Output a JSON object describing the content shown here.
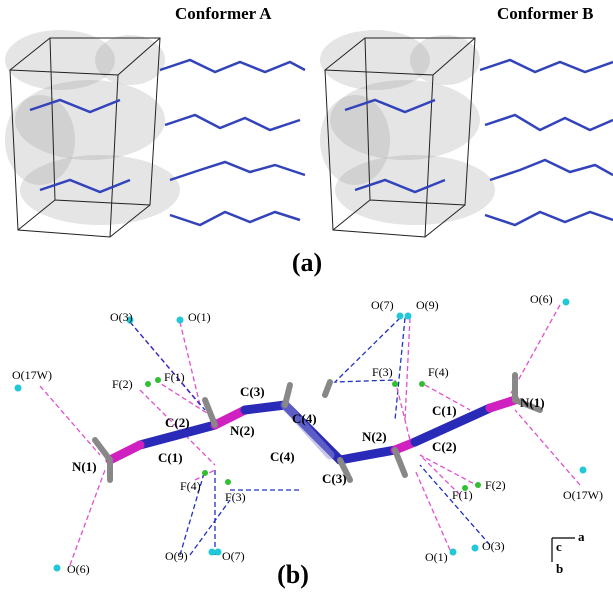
{
  "panel_a": {
    "labels": [
      "Conformer A",
      "Conformer B"
    ],
    "caption": "(a)"
  },
  "panel_b": {
    "atoms": [
      "O(3)",
      "O(1)",
      "O(17W)",
      "F(2)",
      "F(1)",
      "C(2)",
      "N(2)",
      "C(3)",
      "C(4)",
      "C(1)",
      "N(1)",
      "C(4)",
      "C(3)",
      "F(4)",
      "F(3)",
      "O(9)",
      "O(7)",
      "O(7)",
      "O(9)",
      "F(3)",
      "F(4)",
      "C(1)",
      "N(1)",
      "N(2)",
      "C(2)",
      "F(2)",
      "F(1)",
      "O(6)",
      "O(17W)",
      "O(1)",
      "O(3)",
      "O(6)"
    ],
    "axes": [
      "c",
      "a",
      "b"
    ],
    "caption": "(b)"
  }
}
